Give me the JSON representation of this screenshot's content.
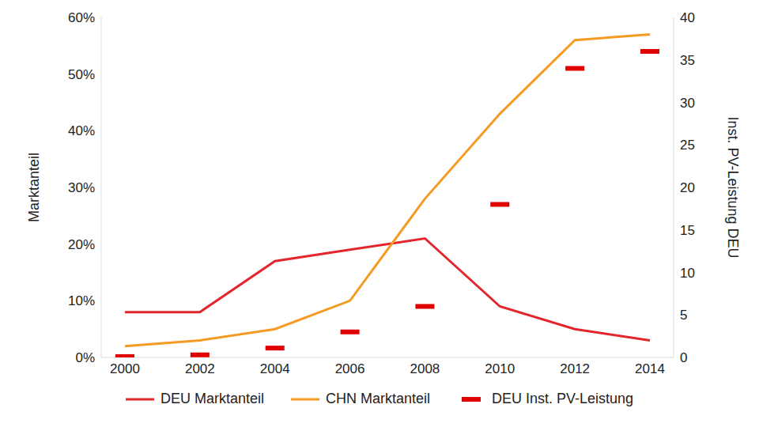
{
  "chart_data": {
    "type": "line",
    "categories": [
      "2000",
      "2002",
      "2004",
      "2006",
      "2008",
      "2010",
      "2012",
      "2014"
    ],
    "y_label": "Marktanteil",
    "y2_label": "Inst. PV-Leistung DEU",
    "ylim": [
      0,
      60
    ],
    "yticks": [
      {
        "value": 0,
        "label": "0%"
      },
      {
        "value": 10,
        "label": "10%"
      },
      {
        "value": 20,
        "label": "20%"
      },
      {
        "value": 30,
        "label": "30%"
      },
      {
        "value": 40,
        "label": "40%"
      },
      {
        "value": 50,
        "label": "50%"
      },
      {
        "value": 60,
        "label": "60%"
      }
    ],
    "y2lim": [
      0,
      40
    ],
    "y2ticks": [
      0,
      5,
      10,
      15,
      20,
      25,
      30,
      35,
      40
    ],
    "grid": false,
    "legend": "bottom",
    "series": [
      {
        "name": "DEU Marktanteil",
        "type": "line",
        "color": "#e3262b",
        "values": [
          8,
          8,
          17,
          19,
          21,
          9,
          5,
          3
        ]
      },
      {
        "name": "CHN Marktanteil",
        "type": "line",
        "color": "#f59a23",
        "values": [
          2,
          3,
          5,
          10,
          28,
          43,
          56,
          57
        ]
      },
      {
        "name": "DEU Inst. PV-Leistung",
        "type": "scatter",
        "marker": "dash",
        "axis": "y2",
        "color": "#e00000",
        "values": [
          0.1,
          0.3,
          1.1,
          3,
          6,
          18,
          34,
          36
        ]
      }
    ]
  }
}
